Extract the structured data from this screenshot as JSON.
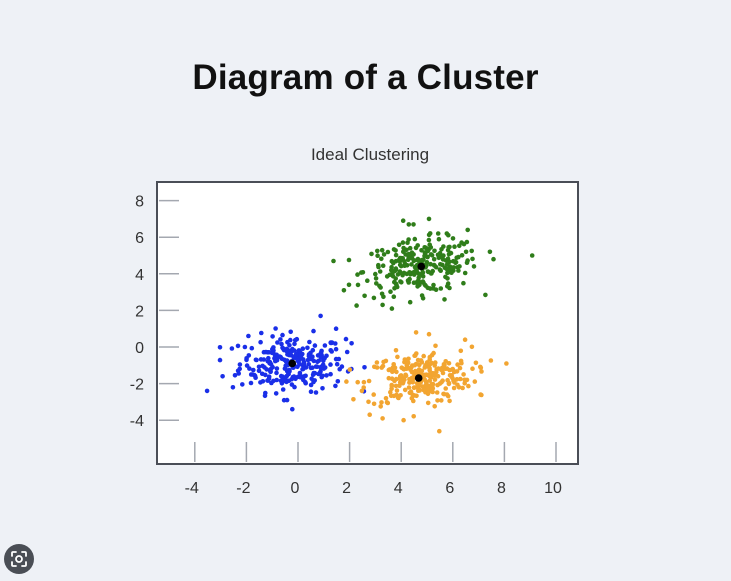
{
  "page": {
    "title": "Diagram of a Cluster"
  },
  "chart_data": {
    "type": "scatter",
    "title": "Ideal Clustering",
    "xlabel": "",
    "ylabel": "",
    "xlim": [
      -5.5,
      11
    ],
    "ylim": [
      -6.5,
      9
    ],
    "x_ticks": [
      -4,
      -2,
      0,
      2,
      4,
      6,
      8,
      10
    ],
    "y_ticks": [
      8,
      6,
      4,
      2,
      0,
      -2,
      -4
    ],
    "grid": false,
    "series": [
      {
        "color": "#1a2fe8",
        "center": [
          -0.3,
          -0.9
        ],
        "spread": [
          1.2,
          0.9
        ],
        "count": 260,
        "points": [
          [
            -3.6,
            -2.4
          ],
          [
            -3.0,
            -1.6
          ],
          [
            -2.6,
            -2.2
          ],
          [
            -2.0,
            0.6
          ],
          [
            0.8,
            1.7
          ],
          [
            1.4,
            1.0
          ],
          [
            2.0,
            0.2
          ],
          [
            -0.3,
            -3.4
          ],
          [
            -0.5,
            -2.9
          ]
        ]
      },
      {
        "color": "#2f7d1a",
        "center": [
          4.7,
          4.4
        ],
        "spread": [
          1.3,
          0.85
        ],
        "count": 260,
        "points": [
          [
            9.0,
            5.0
          ],
          [
            1.3,
            4.7
          ],
          [
            1.7,
            3.1
          ],
          [
            4.0,
            6.9
          ],
          [
            5.0,
            7.0
          ],
          [
            6.5,
            6.4
          ],
          [
            4.4,
            6.7
          ],
          [
            3.2,
            2.3
          ],
          [
            5.6,
            2.6
          ],
          [
            7.5,
            4.8
          ]
        ]
      },
      {
        "color": "#f2a531",
        "center": [
          4.6,
          -1.7
        ],
        "spread": [
          1.2,
          0.85
        ],
        "count": 260,
        "points": [
          [
            8.0,
            -0.9
          ],
          [
            5.4,
            -4.6
          ],
          [
            3.2,
            -3.9
          ],
          [
            2.7,
            -3.7
          ],
          [
            7.0,
            -2.6
          ],
          [
            4.5,
            0.8
          ],
          [
            5.0,
            0.7
          ],
          [
            6.4,
            0.4
          ]
        ]
      }
    ],
    "centroids": [
      [
        -0.3,
        -0.9
      ],
      [
        4.7,
        4.4
      ],
      [
        4.6,
        -1.7
      ]
    ],
    "centroid_color": "#000000"
  }
}
